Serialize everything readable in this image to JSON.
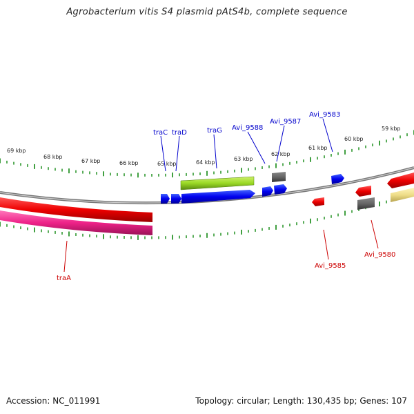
{
  "title": "Agrobacterium vitis S4 plasmid pAtS4b, complete sequence",
  "footer": {
    "accession": "Accession: NC_011991",
    "summary": "Topology: circular; Length: 130,435 bp; Genes: 107"
  },
  "colors": {
    "forward": "#0000ee",
    "reverse": "#dd0000",
    "tick": "#118811",
    "backbone": "#888888",
    "gray_gene": "#666666",
    "green_gene": "#99dd22",
    "pink_gene": "#ee2288",
    "yellow_gene": "#eedd88"
  },
  "kbp_labels": [
    "69 kbp",
    "68 kbp",
    "67 kbp",
    "66 kbp",
    "65 kbp",
    "64 kbp",
    "63 kbp",
    "62 kbp",
    "61 kbp",
    "60 kbp",
    "59 kbp"
  ],
  "forward_labels": [
    "traC",
    "traD",
    "traG",
    "Avi_9588",
    "Avi_9587",
    "Avi_9583"
  ],
  "reverse_labels": [
    "traA",
    "Avi_9585",
    "Avi_9580"
  ]
}
